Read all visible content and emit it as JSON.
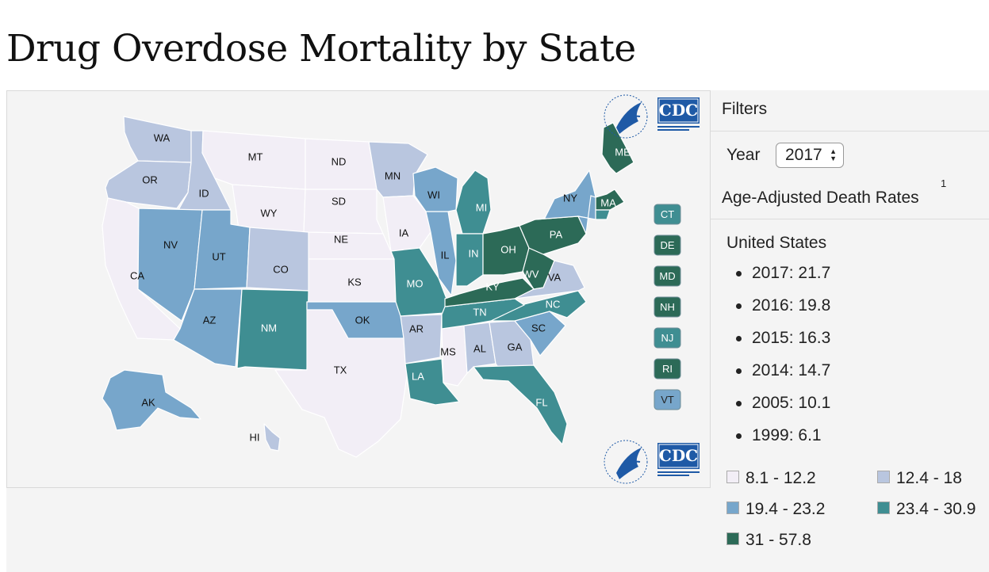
{
  "title": "Drug Overdose Mortality by State",
  "filters": {
    "label": "Filters",
    "year_label": "Year",
    "year_value": "2017",
    "rates_label": "Age-Adjusted Death Rates",
    "rates_footnote": "1"
  },
  "us": {
    "label": "United States",
    "rates": [
      "2017: 21.7",
      "2016: 19.8",
      "2015: 16.3",
      "2014: 14.7",
      "2005: 10.1",
      "1999: 6.1"
    ]
  },
  "legend": [
    {
      "label": "8.1 - 12.2",
      "color": "#f2eef6"
    },
    {
      "label": "12.4 - 18",
      "color": "#b9c6df"
    },
    {
      "label": "19.4 - 23.2",
      "color": "#77a6cb"
    },
    {
      "label": "23.4 - 30.9",
      "color": "#3f8e92"
    },
    {
      "label": "31 - 57.8",
      "color": "#2c6a57"
    }
  ],
  "logos": {
    "cdc": "CDC"
  },
  "states": {
    "WA": 1,
    "OR": 1,
    "ID": 1,
    "MT": 0,
    "WY": 0,
    "ND": 0,
    "SD": 0,
    "NE": 0,
    "KS": 0,
    "MN": 1,
    "IA": 0,
    "CA": 0,
    "NV": 2,
    "UT": 2,
    "AZ": 2,
    "CO": 1,
    "NM": 3,
    "TX": 0,
    "OK": 2,
    "MO": 3,
    "AR": 1,
    "LA": 3,
    "MS": 0,
    "AL": 1,
    "GA": 1,
    "FL": 3,
    "SC": 2,
    "NC": 3,
    "TN": 3,
    "KY": 4,
    "IL": 2,
    "WI": 2,
    "MI": 3,
    "IN": 3,
    "OH": 4,
    "WV": 4,
    "VA": 1,
    "PA": 4,
    "NY": 2,
    "ME": 4,
    "MA": 4,
    "AK": 2,
    "HI": 1
  },
  "small_states": [
    {
      "code": "CT",
      "bin": 3
    },
    {
      "code": "DE",
      "bin": 4
    },
    {
      "code": "MD",
      "bin": 4
    },
    {
      "code": "NH",
      "bin": 4
    },
    {
      "code": "NJ",
      "bin": 3
    },
    {
      "code": "RI",
      "bin": 4
    },
    {
      "code": "VT",
      "bin": 2
    }
  ]
}
